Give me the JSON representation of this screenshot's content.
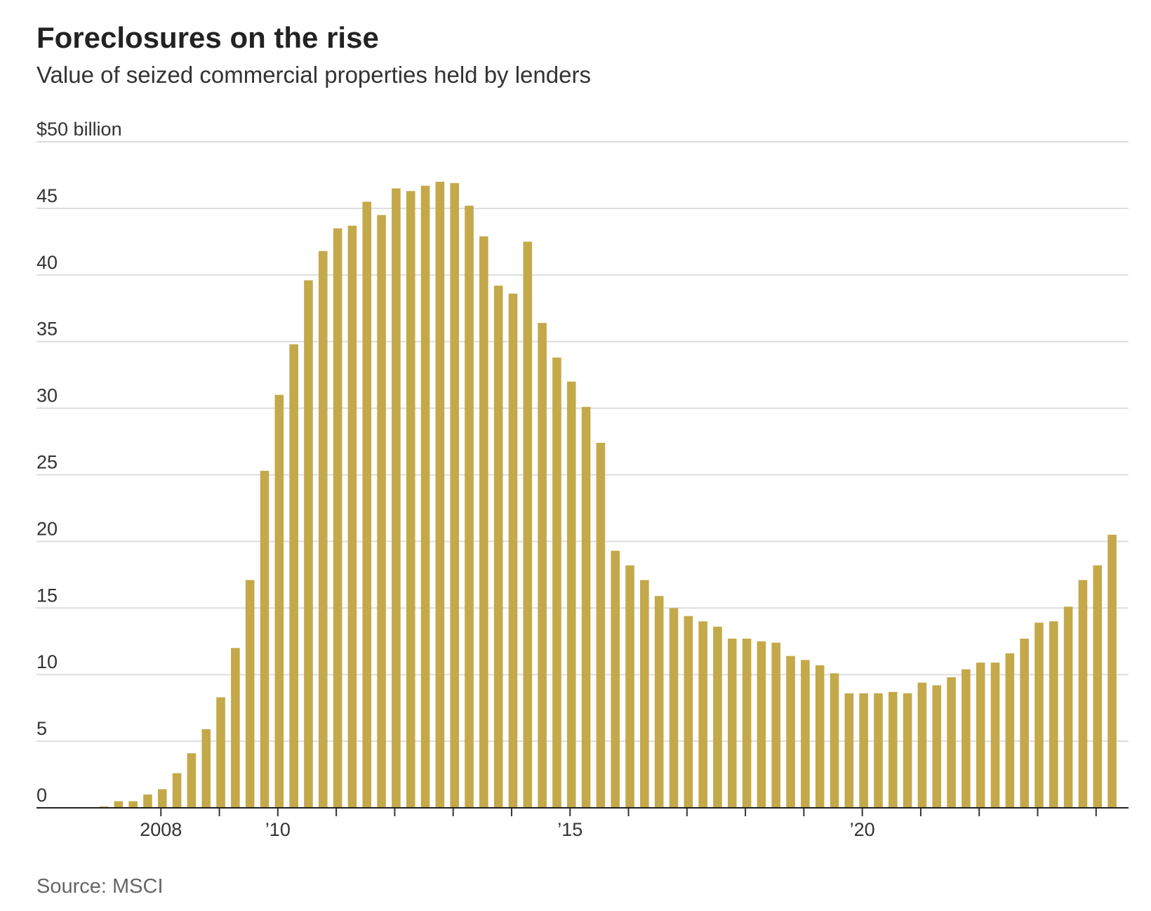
{
  "chart_data": {
    "type": "bar",
    "title": "Foreclosures on the rise",
    "subtitle": "Value of seized commercial properties held by lenders",
    "source": "Source: MSCI",
    "color": "#c4a94a",
    "grid": true,
    "categories": [
      null,
      null,
      null,
      null,
      "2008",
      null,
      null,
      null,
      null,
      null,
      null,
      null,
      "’10",
      null,
      null,
      null,
      null,
      null,
      null,
      null,
      null,
      null,
      null,
      null,
      null,
      null,
      null,
      null,
      null,
      null,
      null,
      null,
      "’15",
      null,
      null,
      null,
      null,
      null,
      null,
      null,
      null,
      null,
      null,
      null,
      null,
      null,
      null,
      null,
      null,
      null,
      null,
      null,
      "’20",
      null,
      null,
      null,
      null,
      null,
      null,
      null,
      null,
      null,
      null,
      null,
      null,
      null,
      null,
      null,
      null,
      null
    ],
    "values": [
      0.1,
      0.5,
      0.5,
      1.0,
      1.4,
      2.6,
      4.1,
      5.9,
      8.3,
      12.0,
      17.1,
      25.3,
      31.0,
      34.8,
      39.6,
      41.8,
      43.5,
      43.7,
      45.5,
      44.5,
      46.5,
      46.3,
      46.7,
      47.0,
      46.9,
      45.2,
      42.9,
      39.2,
      38.6,
      42.5,
      36.4,
      33.8,
      32.0,
      30.1,
      27.4,
      19.3,
      18.2,
      17.1,
      15.9,
      15.0,
      14.4,
      14.0,
      13.6,
      12.7,
      12.7,
      12.5,
      12.4,
      11.4,
      11.1,
      10.7,
      10.1,
      8.6,
      8.6,
      8.6,
      8.7,
      8.6,
      9.4,
      9.2,
      9.8,
      10.4,
      10.9,
      10.9,
      11.6,
      12.7,
      13.9,
      14.0,
      15.1,
      17.1,
      18.2,
      20.5
    ],
    "ylim": [
      0,
      50
    ],
    "yticks": [
      0,
      5,
      10,
      15,
      20,
      25,
      30,
      35,
      40,
      45,
      {
        "value": 50,
        "label": "$50 billion"
      }
    ]
  }
}
